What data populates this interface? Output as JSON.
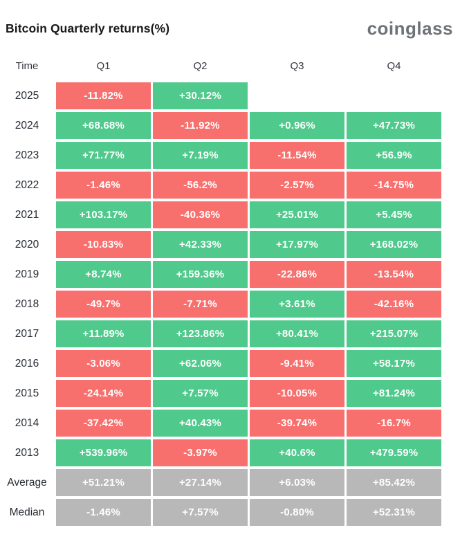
{
  "title": "Bitcoin Quarterly returns(%)",
  "logo": "coinglass",
  "colors": {
    "positive": "#4fc98c",
    "negative": "#f7706e",
    "neutral": "#b8b8b8",
    "title_text": "#17181b",
    "logo_text": "#6e7277",
    "cell_text": "#ffffff"
  },
  "table": {
    "columns": [
      "Time",
      "Q1",
      "Q2",
      "Q3",
      "Q4"
    ],
    "rows": [
      {
        "label": "2025",
        "cells": [
          {
            "text": "-11.82%",
            "type": "negative"
          },
          {
            "text": "+30.12%",
            "type": "positive"
          },
          null,
          null
        ]
      },
      {
        "label": "2024",
        "cells": [
          {
            "text": "+68.68%",
            "type": "positive"
          },
          {
            "text": "-11.92%",
            "type": "negative"
          },
          {
            "text": "+0.96%",
            "type": "positive"
          },
          {
            "text": "+47.73%",
            "type": "positive"
          }
        ]
      },
      {
        "label": "2023",
        "cells": [
          {
            "text": "+71.77%",
            "type": "positive"
          },
          {
            "text": "+7.19%",
            "type": "positive"
          },
          {
            "text": "-11.54%",
            "type": "negative"
          },
          {
            "text": "+56.9%",
            "type": "positive"
          }
        ]
      },
      {
        "label": "2022",
        "cells": [
          {
            "text": "-1.46%",
            "type": "negative"
          },
          {
            "text": "-56.2%",
            "type": "negative"
          },
          {
            "text": "-2.57%",
            "type": "negative"
          },
          {
            "text": "-14.75%",
            "type": "negative"
          }
        ]
      },
      {
        "label": "2021",
        "cells": [
          {
            "text": "+103.17%",
            "type": "positive"
          },
          {
            "text": "-40.36%",
            "type": "negative"
          },
          {
            "text": "+25.01%",
            "type": "positive"
          },
          {
            "text": "+5.45%",
            "type": "positive"
          }
        ]
      },
      {
        "label": "2020",
        "cells": [
          {
            "text": "-10.83%",
            "type": "negative"
          },
          {
            "text": "+42.33%",
            "type": "positive"
          },
          {
            "text": "+17.97%",
            "type": "positive"
          },
          {
            "text": "+168.02%",
            "type": "positive"
          }
        ]
      },
      {
        "label": "2019",
        "cells": [
          {
            "text": "+8.74%",
            "type": "positive"
          },
          {
            "text": "+159.36%",
            "type": "positive"
          },
          {
            "text": "-22.86%",
            "type": "negative"
          },
          {
            "text": "-13.54%",
            "type": "negative"
          }
        ]
      },
      {
        "label": "2018",
        "cells": [
          {
            "text": "-49.7%",
            "type": "negative"
          },
          {
            "text": "-7.71%",
            "type": "negative"
          },
          {
            "text": "+3.61%",
            "type": "positive"
          },
          {
            "text": "-42.16%",
            "type": "negative"
          }
        ]
      },
      {
        "label": "2017",
        "cells": [
          {
            "text": "+11.89%",
            "type": "positive"
          },
          {
            "text": "+123.86%",
            "type": "positive"
          },
          {
            "text": "+80.41%",
            "type": "positive"
          },
          {
            "text": "+215.07%",
            "type": "positive"
          }
        ]
      },
      {
        "label": "2016",
        "cells": [
          {
            "text": "-3.06%",
            "type": "negative"
          },
          {
            "text": "+62.06%",
            "type": "positive"
          },
          {
            "text": "-9.41%",
            "type": "negative"
          },
          {
            "text": "+58.17%",
            "type": "positive"
          }
        ]
      },
      {
        "label": "2015",
        "cells": [
          {
            "text": "-24.14%",
            "type": "negative"
          },
          {
            "text": "+7.57%",
            "type": "positive"
          },
          {
            "text": "-10.05%",
            "type": "negative"
          },
          {
            "text": "+81.24%",
            "type": "positive"
          }
        ]
      },
      {
        "label": "2014",
        "cells": [
          {
            "text": "-37.42%",
            "type": "negative"
          },
          {
            "text": "+40.43%",
            "type": "positive"
          },
          {
            "text": "-39.74%",
            "type": "negative"
          },
          {
            "text": "-16.7%",
            "type": "negative"
          }
        ]
      },
      {
        "label": "2013",
        "cells": [
          {
            "text": "+539.96%",
            "type": "positive"
          },
          {
            "text": "-3.97%",
            "type": "negative"
          },
          {
            "text": "+40.6%",
            "type": "positive"
          },
          {
            "text": "+479.59%",
            "type": "positive"
          }
        ]
      },
      {
        "label": "Average",
        "cells": [
          {
            "text": "+51.21%",
            "type": "neutral"
          },
          {
            "text": "+27.14%",
            "type": "neutral"
          },
          {
            "text": "+6.03%",
            "type": "neutral"
          },
          {
            "text": "+85.42%",
            "type": "neutral"
          }
        ]
      },
      {
        "label": "Median",
        "cells": [
          {
            "text": "-1.46%",
            "type": "neutral"
          },
          {
            "text": "+7.57%",
            "type": "neutral"
          },
          {
            "text": "-0.80%",
            "type": "neutral"
          },
          {
            "text": "+52.31%",
            "type": "neutral"
          }
        ]
      }
    ]
  },
  "chart_data": {
    "type": "heatmap",
    "title": "Bitcoin Quarterly returns(%)",
    "columns": [
      "Q1",
      "Q2",
      "Q3",
      "Q4"
    ],
    "rows": [
      "2025",
      "2024",
      "2023",
      "2022",
      "2021",
      "2020",
      "2019",
      "2018",
      "2017",
      "2016",
      "2015",
      "2014",
      "2013",
      "Average",
      "Median"
    ],
    "values": [
      [
        -11.82,
        30.12,
        null,
        null
      ],
      [
        68.68,
        -11.92,
        0.96,
        47.73
      ],
      [
        71.77,
        7.19,
        -11.54,
        56.9
      ],
      [
        -1.46,
        -56.2,
        -2.57,
        -14.75
      ],
      [
        103.17,
        -40.36,
        25.01,
        5.45
      ],
      [
        -10.83,
        42.33,
        17.97,
        168.02
      ],
      [
        8.74,
        159.36,
        -22.86,
        -13.54
      ],
      [
        -49.7,
        -7.71,
        3.61,
        -42.16
      ],
      [
        11.89,
        123.86,
        80.41,
        215.07
      ],
      [
        -3.06,
        62.06,
        -9.41,
        58.17
      ],
      [
        -24.14,
        7.57,
        -10.05,
        81.24
      ],
      [
        -37.42,
        40.43,
        -39.74,
        -16.7
      ],
      [
        539.96,
        -3.97,
        40.6,
        479.59
      ],
      [
        51.21,
        27.14,
        6.03,
        85.42
      ],
      [
        -1.46,
        7.57,
        -0.8,
        52.31
      ]
    ],
    "legend": "green = positive quarterly return, red = negative, gray = summary rows (Average/Median)",
    "unit": "%"
  }
}
